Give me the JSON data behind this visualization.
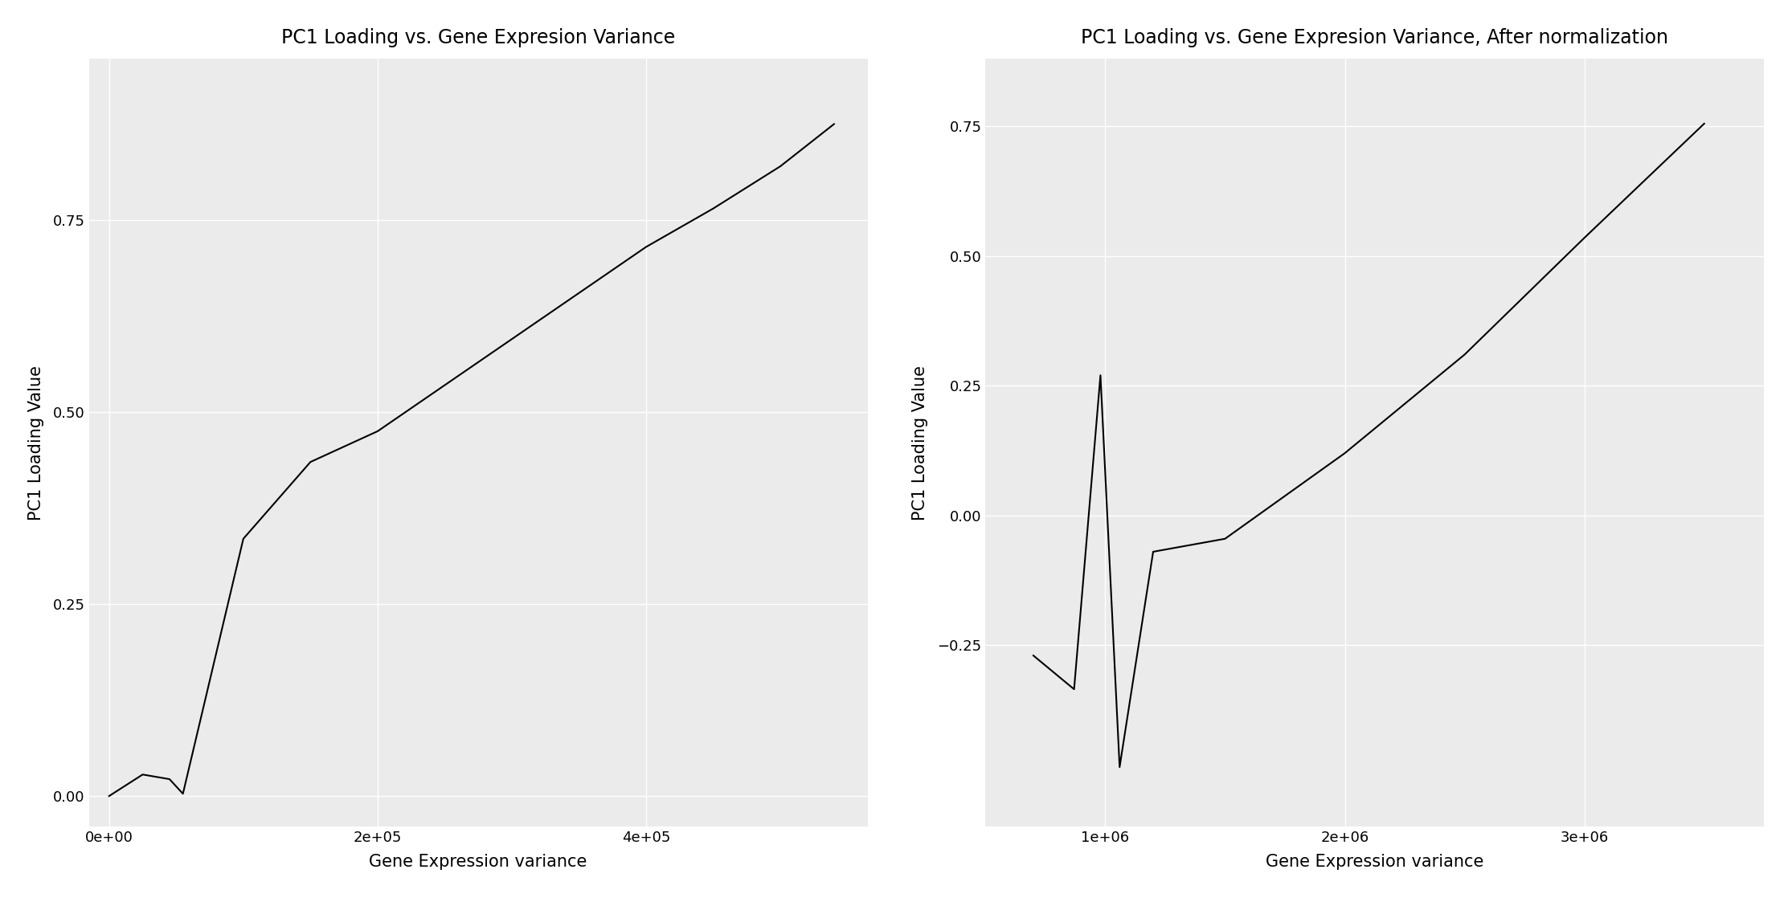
{
  "plot1": {
    "title": "PC1 Loading vs. Gene Expresion Variance",
    "xlabel": "Gene Expression variance",
    "ylabel": "PC1 Loading Value",
    "x": [
      0,
      25000,
      45000,
      55000,
      100000,
      150000,
      200000,
      250000,
      300000,
      350000,
      400000,
      450000,
      500000,
      540000
    ],
    "y": [
      0.0,
      0.028,
      0.022,
      0.003,
      0.335,
      0.435,
      0.475,
      0.535,
      0.595,
      0.655,
      0.715,
      0.765,
      0.82,
      0.875
    ],
    "xlim": [
      -15000,
      565000
    ],
    "ylim": [
      -0.04,
      0.96
    ],
    "xticks": [
      0,
      200000,
      400000
    ],
    "xtick_labels": [
      "0e+00",
      "2e+05",
      "4e+05"
    ],
    "yticks": [
      0.0,
      0.25,
      0.5,
      0.75
    ]
  },
  "plot2": {
    "title": "PC1 Loading vs. Gene Expresion Variance, After normalization",
    "xlabel": "Gene Expression variance",
    "ylabel": "PC1 Loading Value",
    "x": [
      700000,
      870000,
      980000,
      1060000,
      1200000,
      1500000,
      2000000,
      2500000,
      3000000,
      3500000
    ],
    "y": [
      -0.27,
      -0.335,
      0.27,
      -0.485,
      -0.07,
      -0.045,
      0.12,
      0.31,
      0.535,
      0.755
    ],
    "xlim": [
      500000,
      3750000
    ],
    "ylim": [
      -0.6,
      0.88
    ],
    "xticks": [
      1000000,
      2000000,
      3000000
    ],
    "xtick_labels": [
      "1e+06",
      "2e+06",
      "3e+06"
    ],
    "yticks": [
      -0.25,
      0.0,
      0.25,
      0.5,
      0.75
    ]
  },
  "line_color": "#000000",
  "panel_bg_color": "#ebebeb",
  "grid_color": "#ffffff",
  "fig_bg_color": "#ffffff",
  "title_fontsize": 17,
  "label_fontsize": 15,
  "tick_fontsize": 13,
  "grid_linewidth": 1.0,
  "line_linewidth": 1.5
}
